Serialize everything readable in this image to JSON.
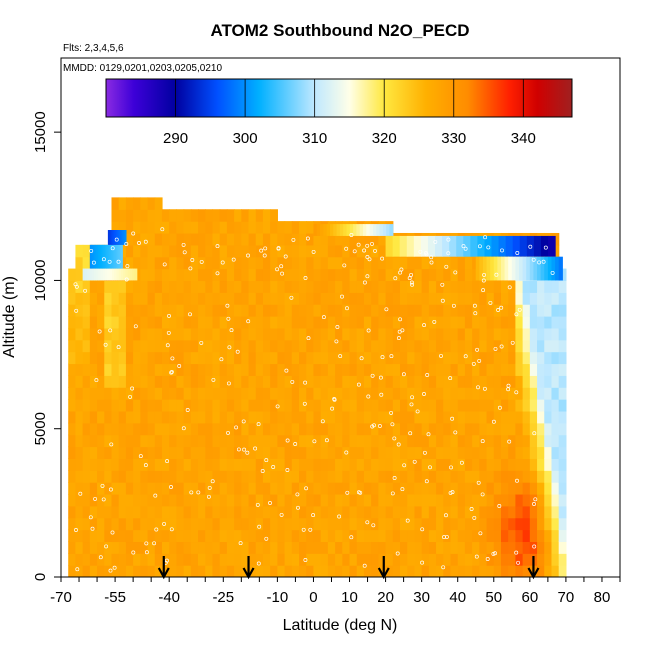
{
  "chart_data": {
    "type": "heatmap",
    "title": "ATOM2 Southbound N2O_PECD",
    "subtitle_flights": "Flts: 2,3,4,5,6",
    "subtitle_dates": "MMDD: 0129,0201,0203,0205,0210",
    "xlabel": "Latitude (deg N)",
    "ylabel": "Altitude (m)",
    "xlim": [
      -70,
      85
    ],
    "ylim": [
      0,
      17500
    ],
    "x_ticks": [
      -70,
      -55,
      -40,
      -25,
      -10,
      0,
      10,
      20,
      30,
      40,
      50,
      60,
      70,
      80
    ],
    "x_tick_labels": [
      "-70",
      "-55",
      "-40",
      "-25",
      "-10",
      "0",
      "10",
      "20",
      "30",
      "40",
      "50",
      "60",
      "70",
      "80"
    ],
    "y_ticks": [
      0,
      5000,
      10000,
      15000
    ],
    "y_tick_labels": [
      "0",
      "5000",
      "10000",
      "15000"
    ],
    "colorbar": {
      "range": [
        280,
        347
      ],
      "ticks": [
        290,
        300,
        310,
        320,
        330,
        340
      ],
      "tick_labels": [
        "290",
        "300",
        "310",
        "320",
        "330",
        "340"
      ],
      "stops": [
        {
          "v": 280,
          "c": "#8a2be2"
        },
        {
          "v": 284,
          "c": "#3d00d8"
        },
        {
          "v": 290,
          "c": "#0000a0"
        },
        {
          "v": 296,
          "c": "#0050ff"
        },
        {
          "v": 302,
          "c": "#00b0ff"
        },
        {
          "v": 310,
          "c": "#bfe8ff"
        },
        {
          "v": 315,
          "c": "#ffffe8"
        },
        {
          "v": 320,
          "c": "#ffe840"
        },
        {
          "v": 326,
          "c": "#ffb000"
        },
        {
          "v": 332,
          "c": "#ff8c00"
        },
        {
          "v": 338,
          "c": "#ff2000"
        },
        {
          "v": 342,
          "c": "#d00000"
        },
        {
          "v": 347,
          "c": "#a02020"
        }
      ]
    },
    "field_lat_range": [
      -68,
      72
    ],
    "field_alt_range": [
      0,
      12500
    ],
    "background_value": 328,
    "high_value_patch": {
      "lat": 58,
      "alt": 1500,
      "value": 336
    },
    "upper_layers": [
      {
        "lat_min": -64,
        "lat_max": -49,
        "alt_min": 10000,
        "alt_max": 10400,
        "value_low": 312,
        "value_high": 318
      },
      {
        "lat_min": -62,
        "lat_max": -53,
        "alt_min": 10400,
        "alt_max": 11200,
        "value_low": 300,
        "value_high": 306
      },
      {
        "lat_min": -57,
        "lat_max": -52,
        "alt_min": 11200,
        "alt_max": 11700,
        "value_low": 294,
        "value_high": 300
      },
      {
        "lat_min": 0,
        "lat_max": 22,
        "alt_min": 11500,
        "alt_max": 11900,
        "value_low": 330,
        "value_high": 308
      },
      {
        "lat_min": 20,
        "lat_max": 67,
        "alt_min": 10800,
        "alt_max": 11500,
        "value_low": 322,
        "value_high": 288
      },
      {
        "lat_min": 45,
        "lat_max": 69,
        "alt_min": 10000,
        "alt_max": 10800,
        "value_low": 326,
        "value_high": 298
      }
    ],
    "tropopause_gradient": {
      "lat_min": 56,
      "lat_max": 72,
      "alt_min": 0,
      "alt_max": 10300,
      "value_inner": 326,
      "value_outer": 310
    },
    "flight_start_markers_lat": [
      -41.5,
      -18,
      19.5,
      61
    ]
  }
}
